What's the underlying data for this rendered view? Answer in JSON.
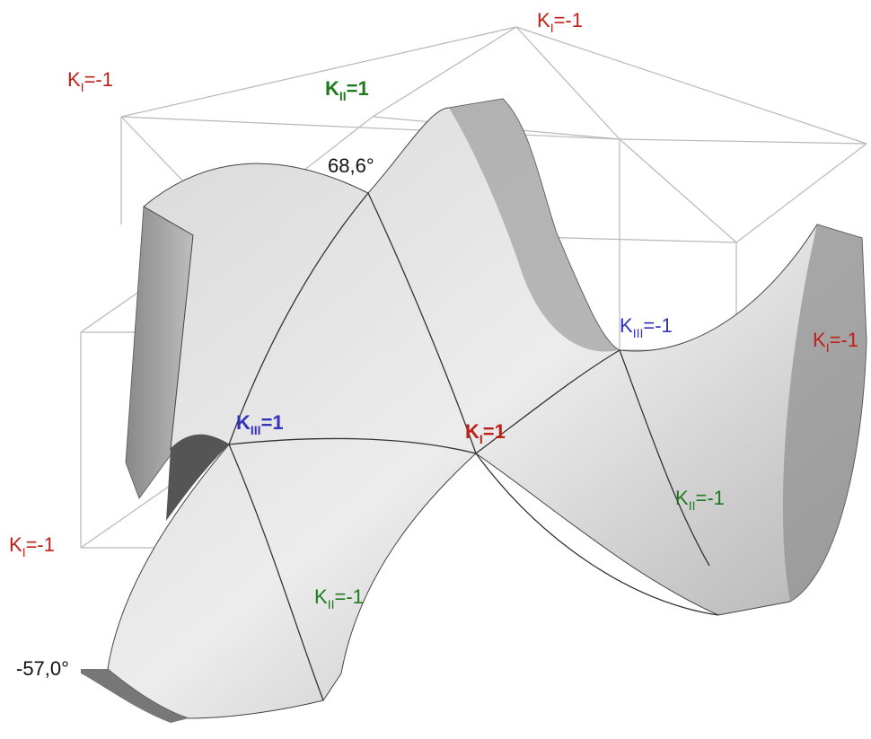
{
  "labels": [
    {
      "symbol": "K",
      "sub": "I",
      "eq": "=-1"
    },
    {
      "symbol": "K",
      "sub": "I",
      "eq": "=-1"
    },
    {
      "symbol": "K",
      "sub": "II",
      "eq": "=1"
    },
    {
      "symbol": "K",
      "sub": "III",
      "eq": "=-1"
    },
    {
      "symbol": "K",
      "sub": "I",
      "eq": "=-1"
    },
    {
      "symbol": "K",
      "sub": "III",
      "eq": "=1"
    },
    {
      "symbol": "K",
      "sub": "I",
      "eq": "=1"
    },
    {
      "symbol": "K",
      "sub": "II",
      "eq": "=-1"
    },
    {
      "symbol": "K",
      "sub": "I",
      "eq": "=-1"
    },
    {
      "symbol": "K",
      "sub": "II",
      "eq": "=-1"
    }
  ],
  "angles": [
    "68,6°",
    "-57,0°"
  ]
}
